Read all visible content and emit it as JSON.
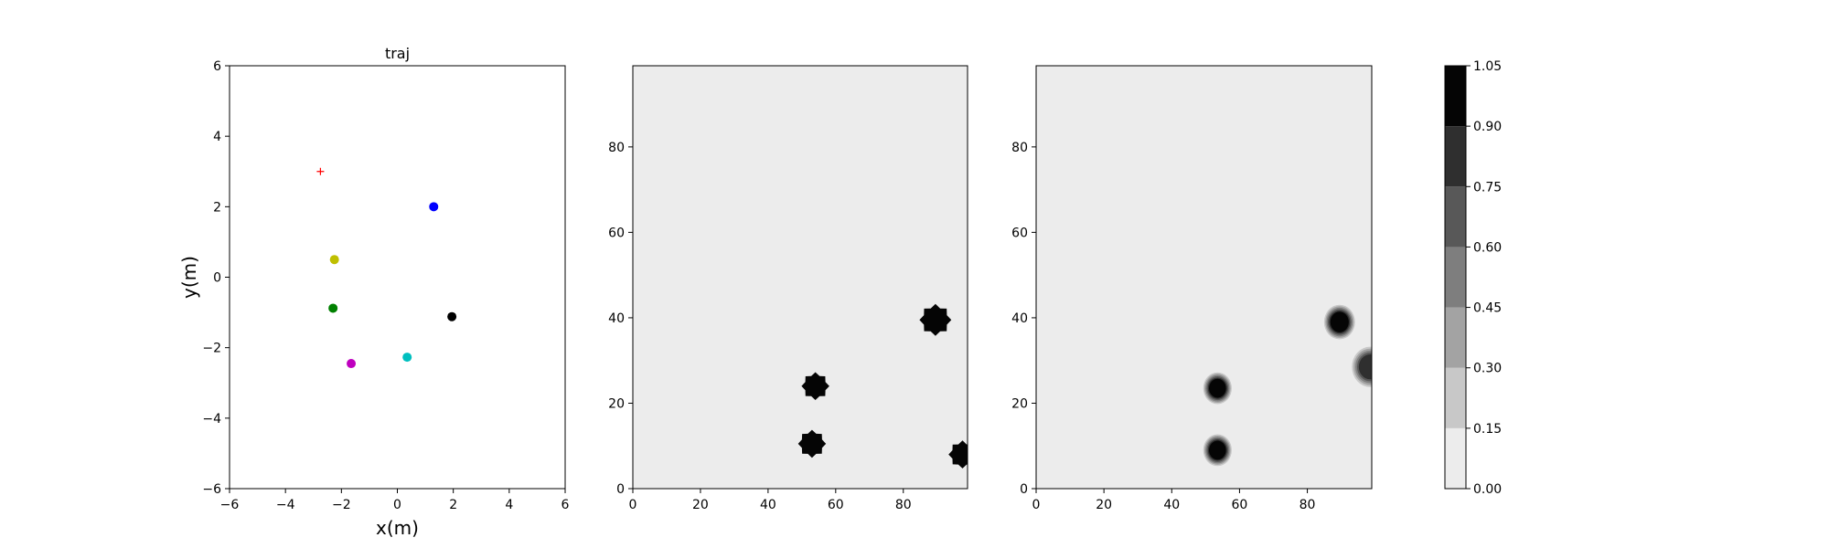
{
  "chart_data": [
    {
      "type": "scatter",
      "title": "traj",
      "xlabel": "x(m)",
      "ylabel": "y(m)",
      "xlim": [
        -6,
        6
      ],
      "ylim": [
        -6,
        6
      ],
      "xticks": [
        -6,
        -4,
        -2,
        0,
        2,
        4,
        6
      ],
      "yticks": [
        -6,
        -4,
        -2,
        0,
        2,
        4,
        6
      ],
      "grid": false,
      "series": [
        {
          "marker": "plus",
          "color": "#ff0000",
          "points": [
            [
              -2.75,
              3.0
            ]
          ]
        },
        {
          "marker": "dot",
          "color": "#0000ff",
          "points": [
            [
              1.3,
              2.0
            ]
          ]
        },
        {
          "marker": "dot",
          "color": "#bfbf00",
          "points": [
            [
              -2.25,
              0.5
            ]
          ]
        },
        {
          "marker": "dot",
          "color": "#008000",
          "points": [
            [
              -2.3,
              -0.88
            ]
          ]
        },
        {
          "marker": "dot",
          "color": "#000000",
          "points": [
            [
              1.95,
              -1.12
            ]
          ]
        },
        {
          "marker": "dot",
          "color": "#00bfbf",
          "points": [
            [
              0.35,
              -2.27
            ]
          ]
        },
        {
          "marker": "dot",
          "color": "#bf00bf",
          "points": [
            [
              -1.65,
              -2.45
            ]
          ]
        }
      ]
    },
    {
      "type": "heatmap",
      "title": "",
      "xlabel": "",
      "ylabel": "",
      "xlim": [
        0,
        99
      ],
      "ylim": [
        0,
        99
      ],
      "xticks": [
        0,
        20,
        40,
        60,
        80
      ],
      "yticks": [
        0,
        20,
        40,
        60,
        80
      ],
      "background_value": 0.0,
      "blobs": [
        {
          "cx": 54,
          "cy": 24,
          "r": 3.5,
          "value": 1.0,
          "spiky": true
        },
        {
          "cx": 53,
          "cy": 10.5,
          "r": 3.5,
          "value": 1.0,
          "spiky": true
        },
        {
          "cx": 89.5,
          "cy": 39.5,
          "r": 4.0,
          "value": 1.0,
          "spiky": true
        },
        {
          "cx": 97.5,
          "cy": 8,
          "r": 3.5,
          "value": 1.0,
          "spiky": true
        }
      ]
    },
    {
      "type": "heatmap",
      "title": "",
      "xlabel": "",
      "ylabel": "",
      "xlim": [
        0,
        99
      ],
      "ylim": [
        0,
        99
      ],
      "xticks": [
        0,
        20,
        40,
        60,
        80
      ],
      "yticks": [
        0,
        20,
        40,
        60,
        80
      ],
      "background_value": 0.0,
      "blobs": [
        {
          "cx": 53.5,
          "cy": 23.5,
          "r": 3.5,
          "value": 1.0,
          "spiky": false
        },
        {
          "cx": 53.5,
          "cy": 9,
          "r": 3.5,
          "value": 1.0,
          "spiky": false
        },
        {
          "cx": 89.5,
          "cy": 39,
          "r": 3.8,
          "value": 1.0,
          "spiky": false
        },
        {
          "cx": 98.5,
          "cy": 28.5,
          "r": 4.5,
          "value": 0.85,
          "spiky": false
        }
      ]
    }
  ],
  "colorbar": {
    "levels": [
      0.0,
      0.15,
      0.3,
      0.45,
      0.6,
      0.75,
      0.9,
      1.05
    ],
    "tick_labels": [
      "0.00",
      "0.15",
      "0.30",
      "0.45",
      "0.60",
      "0.75",
      "0.90",
      "1.05"
    ],
    "colors": [
      "#ececec",
      "#c8c8c8",
      "#a3a3a3",
      "#7e7e7e",
      "#585858",
      "#2f2f2f",
      "#050505"
    ]
  }
}
